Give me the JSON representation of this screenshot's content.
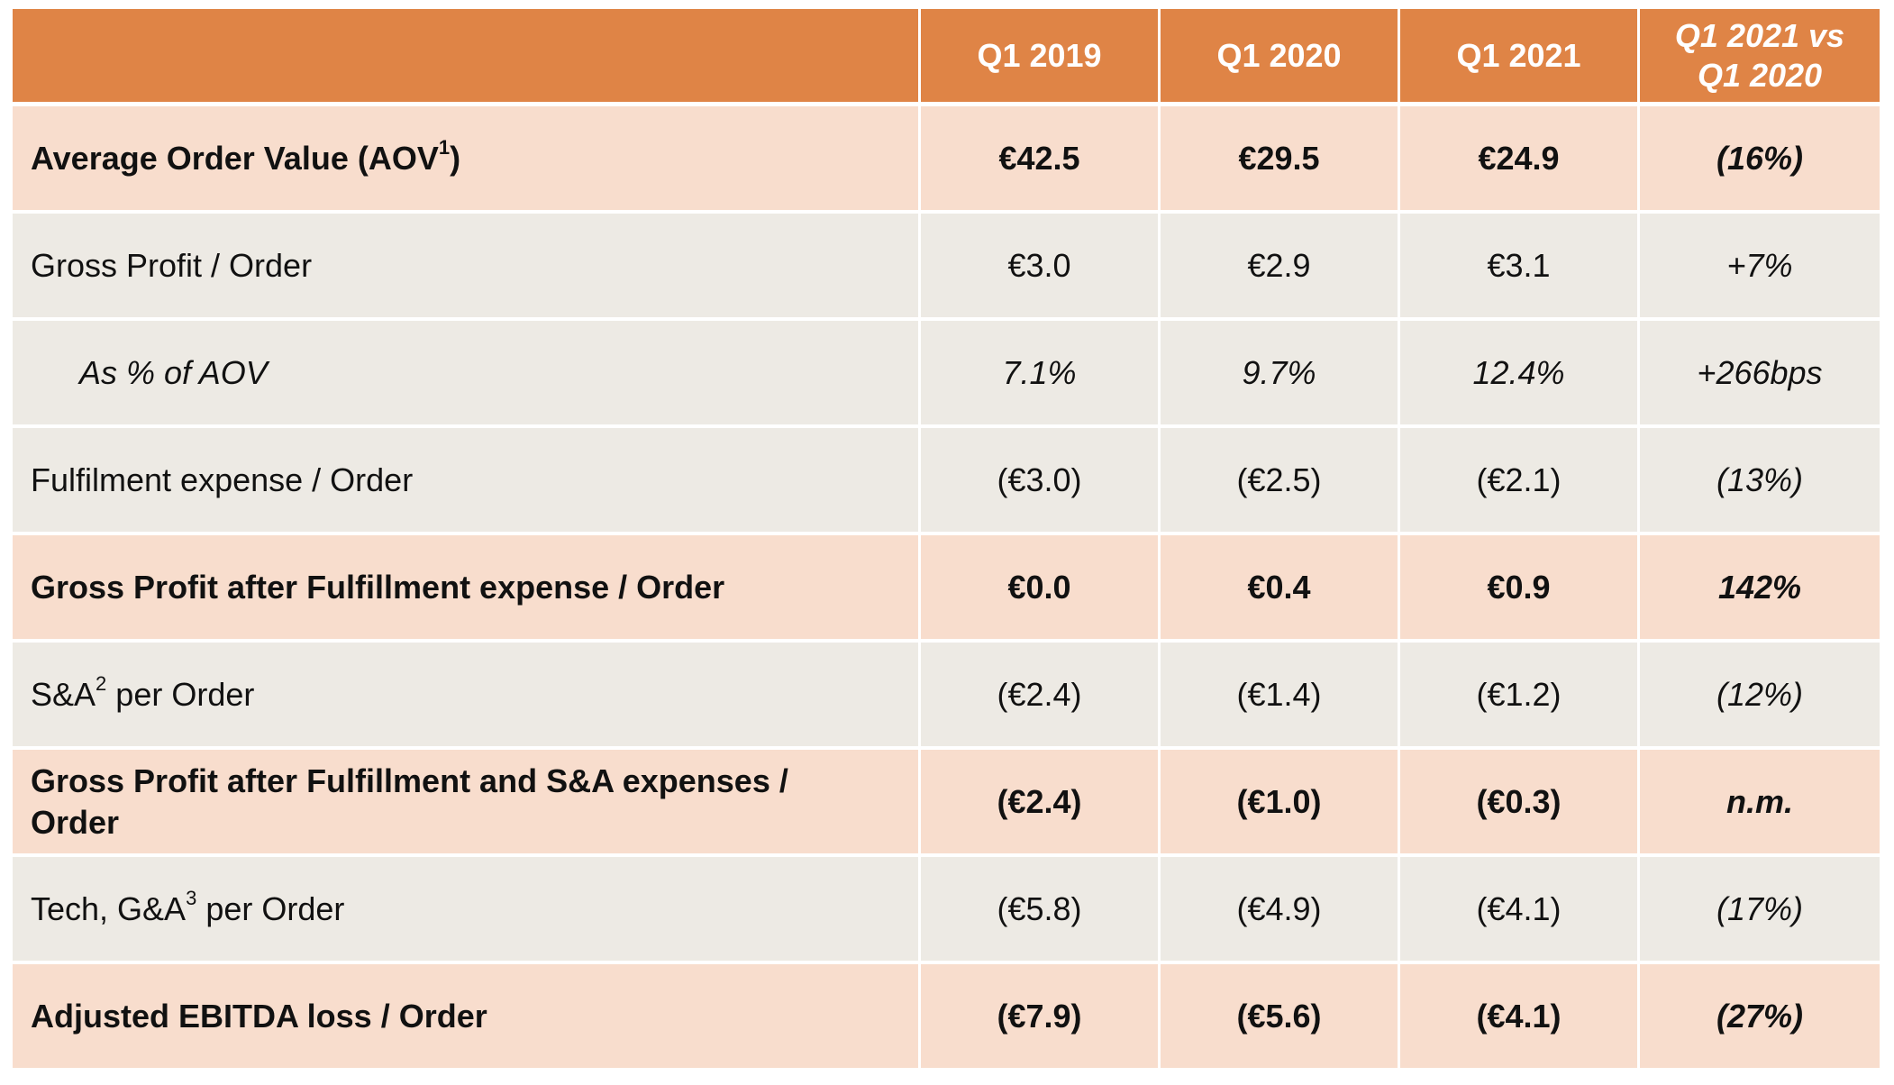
{
  "header": {
    "col0": "",
    "col1": "Q1 2019",
    "col2": "Q1 2020",
    "col3": "Q1 2021",
    "col4_line1": "Q1 2021 vs",
    "col4_line2": "Q1 2020"
  },
  "rows": [
    {
      "label": "Average Order Value (AOV",
      "sup": "1",
      "label_after": ")",
      "q1_2019": "€42.5",
      "q1_2020": "€29.5",
      "q1_2021": "€24.9",
      "change": "(16%)"
    },
    {
      "label": "Gross Profit / Order",
      "q1_2019": "€3.0",
      "q1_2020": "€2.9",
      "q1_2021": "€3.1",
      "change": "+7%"
    },
    {
      "label": "As % of AOV",
      "q1_2019": "7.1%",
      "q1_2020": "9.7%",
      "q1_2021": "12.4%",
      "change": "+266bps"
    },
    {
      "label": "Fulfilment expense / Order",
      "q1_2019": "(€3.0)",
      "q1_2020": "(€2.5)",
      "q1_2021": "(€2.1)",
      "change": "(13%)"
    },
    {
      "label": "Gross Profit after Fulfillment expense / Order",
      "q1_2019": "€0.0",
      "q1_2020": "€0.4",
      "q1_2021": "€0.9",
      "change": "142%"
    },
    {
      "label": "S&A",
      "sup": "2",
      "label_after": " per Order",
      "q1_2019": "(€2.4)",
      "q1_2020": "(€1.4)",
      "q1_2021": "(€1.2)",
      "change": "(12%)"
    },
    {
      "label": "Gross Profit after Fulfillment and S&A expenses / Order",
      "q1_2019": "(€2.4)",
      "q1_2020": "(€1.0)",
      "q1_2021": "(€0.3)",
      "change": "n.m."
    },
    {
      "label": "Tech, G&A",
      "sup": "3",
      "label_after": " per Order",
      "q1_2019": "(€5.8)",
      "q1_2020": "(€4.9)",
      "q1_2021": "(€4.1)",
      "change": "(17%)"
    },
    {
      "label": "Adjusted EBITDA loss / Order",
      "q1_2019": "(€7.9)",
      "q1_2020": "(€5.6)",
      "q1_2021": "(€4.1)",
      "change": "(27%)"
    }
  ],
  "colors": {
    "header": "#df8446",
    "highlight_row": "#f8ddcd",
    "standard_row": "#edeae4"
  }
}
